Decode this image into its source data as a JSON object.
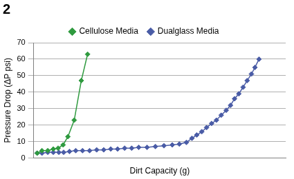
{
  "chart_data": {
    "type": "line",
    "title": "2",
    "x_label": "Dirt Capacity (g)",
    "y_label": "Pressure Drop (ΔP psi)",
    "series": [
      {
        "name": "Cellulose Media",
        "color": "#2f9a3f",
        "marker": "diamond",
        "x": [
          1.4,
          3.3,
          5.6,
          7.8,
          9.7,
          11.7,
          13.6,
          16.1,
          18.9,
          21.4
        ],
        "values": [
          3,
          4.5,
          4.5,
          5.5,
          6,
          8,
          13,
          23,
          47,
          63
        ]
      },
      {
        "name": "Dualglass Media",
        "color": "#4a5ca6",
        "marker": "diamond",
        "x": [
          1.4,
          3.3,
          5.6,
          7.8,
          10,
          11.9,
          14.2,
          16.7,
          19.4,
          22.2,
          25,
          27.8,
          30.6,
          33.3,
          36.1,
          38.9,
          41.7,
          45,
          48.3,
          51.7,
          55,
          57.8,
          60.6,
          62.8,
          64.7,
          66.7,
          68.6,
          70.6,
          72.5,
          74.4,
          76.4,
          78.1,
          79.7,
          81.4,
          83.1,
          84.7,
          86.4,
          87.8,
          89.4
        ],
        "values": [
          3,
          3,
          3.5,
          3.5,
          3.5,
          3.5,
          4,
          4.5,
          4.5,
          4.5,
          5,
          5,
          5.5,
          5.5,
          6,
          6,
          6.5,
          6.5,
          7,
          7.5,
          8,
          8.5,
          9.5,
          12,
          14,
          16,
          18.5,
          21,
          23,
          26,
          29,
          32,
          36,
          39,
          43,
          47,
          51,
          55,
          60
        ]
      }
    ],
    "xlim": [
      0,
      100
    ],
    "ylim": [
      0,
      70
    ],
    "yticks": [
      0,
      10,
      20,
      30,
      40,
      50,
      60,
      70
    ],
    "grid": true,
    "legend": "top",
    "tick_labels": "y"
  }
}
